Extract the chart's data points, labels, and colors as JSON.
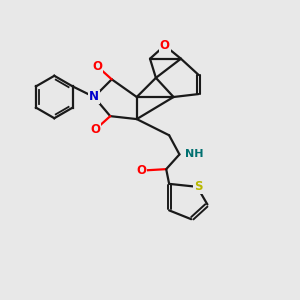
{
  "background_color": "#e8e8e8",
  "bond_color": "#1a1a1a",
  "atom_colors": {
    "O": "#ff0000",
    "N_blue": "#0000cc",
    "N_teal": "#007070",
    "S": "#b8b800",
    "C": "#1a1a1a"
  },
  "figsize": [
    3.0,
    3.0
  ],
  "dpi": 100
}
